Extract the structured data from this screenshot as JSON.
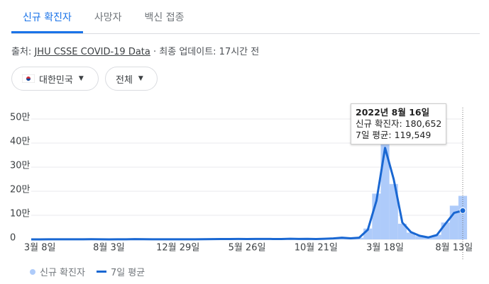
{
  "tabs": [
    "신규 확진자",
    "사망자",
    "백신 접종"
  ],
  "source": {
    "label": "출처:",
    "link": "JHU CSSE COVID-19 Data",
    "updated": "· 최종 업데이트: 17시간 전"
  },
  "filters": [
    "대한민국",
    "전체"
  ],
  "tooltip": {
    "date": "2022년 8월 16일",
    "daily": "신규 확진자: 180,652",
    "average": "7일 평균: 119,549"
  },
  "chart_data": {
    "type": "bar-line",
    "categories": [
      null,
      "3월 8일",
      null,
      null,
      null,
      null,
      null,
      null,
      null,
      "8월 3일",
      null,
      null,
      null,
      null,
      null,
      null,
      null,
      "12월 29일",
      null,
      null,
      null,
      null,
      null,
      null,
      null,
      "5월 26일",
      null,
      null,
      null,
      null,
      null,
      null,
      null,
      "10월 21일",
      null,
      null,
      null,
      null,
      null,
      null,
      null,
      "3월 18일",
      null,
      null,
      null,
      null,
      null,
      null,
      null,
      "8월 13일",
      null
    ],
    "series": [
      {
        "name": "신규 확진자",
        "color": "#aecbfa",
        "kind": "bar",
        "values": [
          0,
          120,
          180,
          350,
          380,
          320,
          520,
          580,
          220,
          140,
          260,
          420,
          1050,
          580,
          420,
          470,
          330,
          520,
          430,
          560,
          620,
          1250,
          1280,
          1650,
          1720,
          1480,
          1820,
          1950,
          1580,
          1450,
          2500,
          1750,
          2300,
          1450,
          2600,
          4200,
          7400,
          4300,
          7300,
          45000,
          190000,
          400000,
          230000,
          65000,
          28000,
          14000,
          7500,
          19000,
          70000,
          140000,
          180652
        ]
      },
      {
        "name": "7일 평균",
        "color": "#1967d2",
        "kind": "line",
        "values": [
          0,
          100,
          200,
          300,
          400,
          300,
          500,
          600,
          200,
          150,
          250,
          400,
          1000,
          600,
          400,
          450,
          350,
          500,
          450,
          550,
          600,
          1200,
          1300,
          1600,
          1700,
          1500,
          1800,
          1900,
          1600,
          1400,
          2400,
          1800,
          2200,
          1500,
          2500,
          4000,
          7000,
          4500,
          7000,
          40000,
          160000,
          380000,
          250000,
          70000,
          30000,
          15000,
          8000,
          18000,
          65000,
          110000,
          119549
        ]
      }
    ],
    "ylim": [
      0,
      500000
    ],
    "yticks": [
      0,
      {
        "value": 100000,
        "label": "10만"
      },
      {
        "value": 200000,
        "label": "20만"
      },
      {
        "value": 300000,
        "label": "30만"
      },
      {
        "value": 400000,
        "label": "40만"
      },
      {
        "value": 500000,
        "label": "50만"
      }
    ],
    "grid": true
  }
}
